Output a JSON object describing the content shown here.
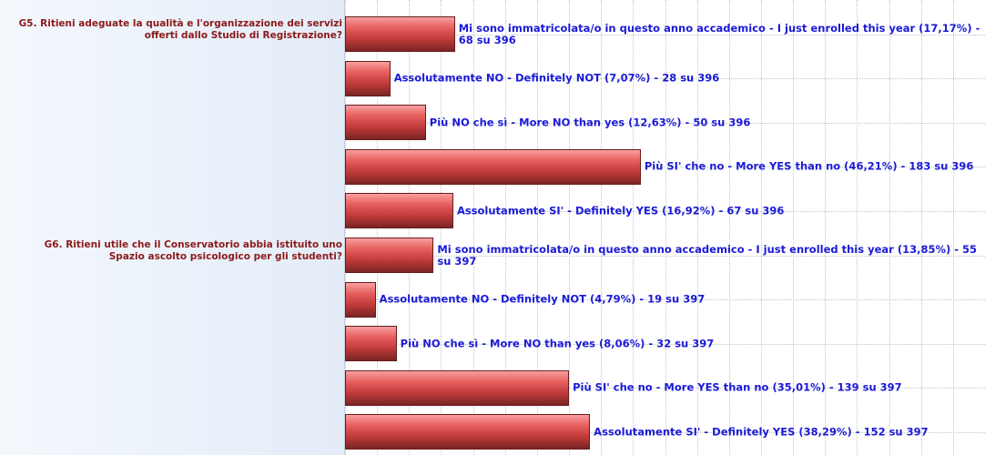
{
  "chart_data": {
    "type": "bar",
    "orientation": "horizontal",
    "color": "#d9484a",
    "xlim": [
      0,
      100
    ],
    "xticks": [
      0,
      5,
      10,
      15,
      20,
      25,
      30,
      35,
      40,
      45,
      50,
      55,
      60,
      65,
      70,
      75,
      80,
      85,
      90,
      95,
      100
    ],
    "grid": true,
    "groups": [
      {
        "question": "G5. Ritieni adeguate la qualità e l'organizzazione dei servizi offerti dallo Studio di Registrazione?",
        "values": [
          17.17,
          7.07,
          12.63,
          46.21,
          16.92
        ],
        "value_labels": [
          "Mi sono immatricolata/o in questo anno accademico - I just enrolled this year (17,17%) - 68 su 396",
          "Assolutamente NO - Definitely NOT (7,07%) - 28 su 396",
          "Più NO che sì - More NO than yes (12,63%) - 50 su 396",
          "Più SI' che no - More YES than no (46,21%) - 183 su 396",
          "Assolutamente SI' - Definitely YES (16,92%) - 67 su 396"
        ]
      },
      {
        "question": "G6. Ritieni utile che il Conservatorio abbia istituito uno Spazio ascolto psicologico per gli studenti?",
        "values": [
          13.85,
          4.79,
          8.06,
          35.01,
          38.29
        ],
        "value_labels": [
          "Mi sono immatricolata/o in questo anno accademico - I just enrolled this year (13,85%) - 55 su 397",
          "Assolutamente NO - Definitely NOT (4,79%) - 19 su 397",
          "Più NO che sì - More NO than yes (8,06%) - 32 su 397",
          "Più SI' che no - More YES than no (35,01%) - 139 su 397",
          "Assolutamente SI' - Definitely YES (38,29%) - 152 su 397"
        ]
      }
    ]
  }
}
